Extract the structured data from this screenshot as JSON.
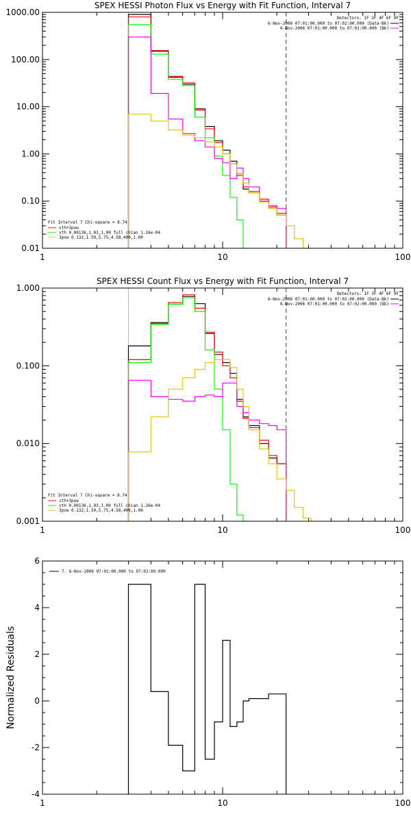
{
  "chart_data": [
    {
      "type": "line",
      "title": "SPEX HESSI Photon Flux vs Energy with Fit Function, Interval 7",
      "xlabel": "",
      "ylabel": "",
      "xscale": "log",
      "yscale": "log",
      "xlim": [
        1,
        100
      ],
      "ylim": [
        0.01,
        1000
      ],
      "xticks": [
        1,
        10,
        100
      ],
      "xtick_labels": [
        "1",
        "10",
        "100"
      ],
      "yticks": [
        0.01,
        0.1,
        1,
        10,
        100,
        1000
      ],
      "ytick_labels": [
        "0.01",
        "0.10",
        "1.00",
        "10.00",
        "100.00",
        "1000.00"
      ],
      "edges": [
        3,
        4,
        5,
        6,
        7,
        8,
        9,
        10,
        11,
        12,
        13,
        14,
        16,
        18,
        20,
        22.5,
        25,
        28,
        31
      ],
      "series": [
        {
          "name": "",
          "color": "#000000",
          "values": [
            900,
            150,
            42,
            30,
            9,
            3.8,
            1.9,
            1.2,
            0.7,
            0.38,
            0.18,
            0.15,
            0.1,
            0.07,
            0.05,
            null,
            null,
            null
          ]
        },
        {
          "name": "",
          "color": "#ff0000",
          "values": [
            800,
            155,
            44,
            32,
            8.5,
            3.4,
            1.75,
            1.0,
            0.62,
            0.35,
            0.2,
            0.16,
            0.11,
            0.075,
            0.055,
            null,
            null,
            null
          ]
        },
        {
          "name": "vth 0.00136,1.03,1.00  full chian 1.26e-04",
          "color": "#00ff00",
          "values": [
            550,
            130,
            38,
            28,
            6,
            2.2,
            0.9,
            0.35,
            0.12,
            0.04,
            0.01,
            null,
            null,
            null,
            null,
            null,
            null,
            null
          ]
        },
        {
          "name": "",
          "color": "#ff00ff",
          "values": [
            300,
            19,
            5.5,
            2.7,
            1.9,
            1.4,
            0.8,
            0.65,
            0.3,
            0.5,
            0.3,
            0.2,
            0.1,
            0.08,
            0.07,
            null,
            null,
            null
          ]
        },
        {
          "name": "3pow 0.132,1.50,5.75,4.58,400,1.00",
          "color": "#e6c800",
          "values": [
            7,
            5,
            3.2,
            2.5,
            2.2,
            1.8,
            1.4,
            1.0,
            0.62,
            0.38,
            0.24,
            0.15,
            0.095,
            0.07,
            0.05,
            0.03,
            0.016,
            0.01
          ]
        }
      ],
      "vlines": [
        {
          "x": 3,
          "style": "dotted",
          "color": "#000000"
        },
        {
          "x": 3,
          "style": "solid",
          "color": "#e6c800"
        },
        {
          "x": 22.5,
          "style": "dashed",
          "color": "#000000"
        },
        {
          "x": 22.5,
          "style": "dashed",
          "color": "#ff00ff"
        }
      ],
      "legend_topright": {
        "placement": "top-right",
        "header": "Detectors: 1F 3F 4F 6F 9F",
        "lines": [
          {
            "text": "6-Nov-2006 07:01:00.000 to 07:02:00.000 (Data-Bk)",
            "color": "#000000"
          },
          {
            "text": "6-Nov-2006 07:01:00.000 to 07:02:00.000 (Bk)",
            "color": "#ff00ff"
          }
        ]
      },
      "legend_bottomleft": {
        "placement": "bottom-left",
        "header": "Fit Interval 7   Chi-square = 8.74",
        "lines": [
          {
            "text": "vth+3pow",
            "color": "#ff0000"
          },
          {
            "text": "vth 0.00136,1.03,1.00  full chian 1.26e-04",
            "color": "#00ff00"
          },
          {
            "text": "3pow 0.132,1.50,5.75,4.58,400,1.00",
            "color": "#e6c800"
          }
        ]
      }
    },
    {
      "type": "line",
      "title": "SPEX HESSI Count Flux vs Energy with Fit Function, Interval 7",
      "xlabel": "",
      "ylabel": "",
      "xscale": "log",
      "yscale": "log",
      "xlim": [
        1,
        100
      ],
      "ylim": [
        0.001,
        1
      ],
      "xticks": [
        1,
        10,
        100
      ],
      "xtick_labels": [
        "1",
        "10",
        "100"
      ],
      "yticks": [
        0.001,
        0.01,
        0.1,
        1
      ],
      "ytick_labels": [
        "0.001",
        "0.010",
        "0.100",
        "1.000"
      ],
      "edges": [
        3,
        4,
        5,
        6,
        7,
        8,
        9,
        10,
        11,
        12,
        13,
        14,
        16,
        18,
        20,
        22.5,
        25,
        28,
        31
      ],
      "series": [
        {
          "name": "",
          "color": "#000000",
          "values": [
            0.18,
            0.36,
            0.62,
            0.78,
            0.63,
            0.26,
            0.14,
            0.11,
            0.08,
            0.037,
            0.022,
            0.017,
            0.01,
            0.0065,
            0.0055,
            null,
            null,
            null
          ]
        },
        {
          "name": "",
          "color": "#ff0000",
          "values": [
            0.12,
            0.35,
            0.65,
            0.82,
            0.55,
            0.27,
            0.15,
            0.1,
            0.07,
            0.035,
            0.021,
            0.016,
            0.011,
            0.007,
            0.0055,
            null,
            null,
            null
          ]
        },
        {
          "name": "vth 0.00136,1.03,1.00  full chian 1.26e-04",
          "color": "#00ff00",
          "values": [
            0.11,
            0.34,
            0.62,
            0.75,
            0.5,
            0.16,
            0.05,
            0.015,
            0.003,
            0.0012,
            0.001,
            null,
            null,
            null,
            null,
            null,
            null,
            null
          ]
        },
        {
          "name": "",
          "color": "#ff00ff",
          "values": [
            0.065,
            0.04,
            0.037,
            0.035,
            0.04,
            0.042,
            0.04,
            0.06,
            0.06,
            0.03,
            0.025,
            0.02,
            0.018,
            0.017,
            0.015,
            null,
            null,
            null
          ]
        },
        {
          "name": "3pow 0.132,1.50,5.75,4.58,400,1.00",
          "color": "#e6c800",
          "values": [
            0.0078,
            0.022,
            0.05,
            0.07,
            0.09,
            0.11,
            0.12,
            0.12,
            0.095,
            0.05,
            0.03,
            0.015,
            0.0085,
            0.0055,
            0.0035,
            0.0025,
            0.0015,
            0.0011
          ]
        }
      ],
      "vlines": [
        {
          "x": 3,
          "style": "dotted",
          "color": "#000000"
        },
        {
          "x": 3,
          "style": "solid",
          "color": "#e6c800"
        },
        {
          "x": 22.5,
          "style": "dashed",
          "color": "#000000"
        },
        {
          "x": 22.5,
          "style": "dashed",
          "color": "#ff00ff"
        }
      ],
      "legend_topright": {
        "placement": "top-right",
        "header": "Detectors: 1F 3F 4F 6F 9F",
        "lines": [
          {
            "text": "6-Nov-2006 07:01:00.000 to 07:02:00.000 (Data-Bk)",
            "color": "#000000"
          },
          {
            "text": "6-Nov-2006 07:01:00.000 to 07:02:00.000 (Bk)",
            "color": "#ff00ff"
          }
        ]
      },
      "legend_bottomleft": {
        "placement": "bottom-left",
        "header": "Fit Interval 7   Chi-square = 8.74",
        "lines": [
          {
            "text": "vth+3pow",
            "color": "#ff0000"
          },
          {
            "text": "vth 0.00136,1.03,1.00  full chian 1.26e-04",
            "color": "#00ff00"
          },
          {
            "text": "3pow 0.132,1.50,5.75,4.58,400,1.00",
            "color": "#e6c800"
          }
        ]
      }
    },
    {
      "type": "line",
      "title": "",
      "xlabel": "",
      "ylabel": "Normalized Residuals",
      "xscale": "log",
      "yscale": "linear",
      "xlim": [
        1,
        100
      ],
      "ylim": [
        -4,
        6
      ],
      "xticks": [
        1,
        10,
        100
      ],
      "xtick_labels": [
        "1",
        "10",
        "100"
      ],
      "yticks": [
        -4,
        -2,
        0,
        2,
        4,
        6
      ],
      "ytick_labels": [
        "-4",
        "-2",
        "0",
        "2",
        "4",
        "6"
      ],
      "edges": [
        3,
        4,
        5,
        6,
        7,
        8,
        9,
        10,
        11,
        12,
        13,
        14,
        16,
        18,
        20,
        22.5
      ],
      "series": [
        {
          "name": "",
          "color": "#000000",
          "values": [
            5.0,
            0.4,
            -1.9,
            -3.0,
            5.0,
            -2.5,
            -0.9,
            2.6,
            -1.1,
            -0.9,
            0.0,
            0.1,
            0.1,
            0.3,
            0.3
          ]
        }
      ],
      "legend": {
        "placement": "top-left",
        "text": "7.  6-Nov-2006 07:01:00.000 to 07:02:00.000",
        "color": "#000000"
      }
    }
  ]
}
